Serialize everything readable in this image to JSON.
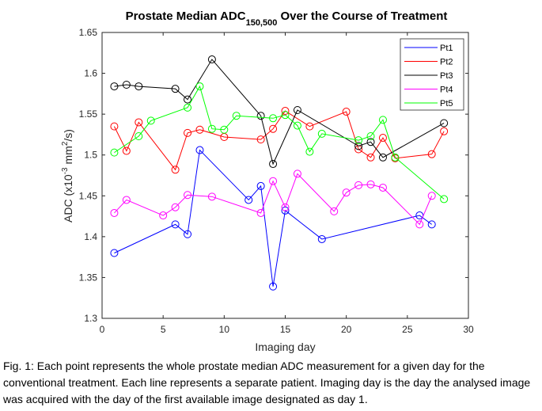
{
  "chart_data": {
    "type": "line",
    "title": {
      "main": "Prostate Median ADC",
      "subscript": "150,500",
      "suffix": " Over the Course of Treatment"
    },
    "xlabel": "Imaging day",
    "ylabel": {
      "prefix": "ADC (x10",
      "exp1": "-3",
      "middle": " mm",
      "exp2": "2",
      "suffix": "/s)"
    },
    "xlim": [
      0,
      30
    ],
    "ylim": [
      1.3,
      1.65
    ],
    "xticks": [
      "0",
      "5",
      "10",
      "15",
      "20",
      "25",
      "30"
    ],
    "yticks": [
      "1.3",
      "1.35",
      "1.4",
      "1.45",
      "1.5",
      "1.55",
      "1.6",
      "1.65"
    ],
    "grid": false,
    "legend_position": "top-right",
    "marker": "circle",
    "series": [
      {
        "name": "Pt1",
        "color": "#0000ff",
        "x": [
          1,
          6,
          7,
          8,
          12,
          13,
          14,
          15,
          18,
          26,
          27
        ],
        "y": [
          1.38,
          1.415,
          1.403,
          1.506,
          1.445,
          1.462,
          1.339,
          1.432,
          1.397,
          1.426,
          1.415
        ]
      },
      {
        "name": "Pt2",
        "color": "#ff0000",
        "x": [
          1,
          2,
          3,
          6,
          7,
          8,
          10,
          13,
          14,
          15,
          17,
          20,
          21,
          22,
          23,
          24,
          27,
          28
        ],
        "y": [
          1.535,
          1.505,
          1.54,
          1.482,
          1.527,
          1.531,
          1.522,
          1.519,
          1.532,
          1.554,
          1.535,
          1.553,
          1.507,
          1.497,
          1.521,
          1.496,
          1.501,
          1.529
        ]
      },
      {
        "name": "Pt3",
        "color": "#000000",
        "x": [
          1,
          2,
          3,
          6,
          7,
          9,
          13,
          14,
          16,
          21,
          22,
          23,
          28
        ],
        "y": [
          1.584,
          1.586,
          1.584,
          1.581,
          1.568,
          1.617,
          1.548,
          1.489,
          1.555,
          1.511,
          1.516,
          1.497,
          1.539
        ]
      },
      {
        "name": "Pt4",
        "color": "#ff00ff",
        "x": [
          1,
          2,
          5,
          6,
          7,
          9,
          13,
          14,
          15,
          16,
          19,
          20,
          21,
          22,
          23,
          26,
          27
        ],
        "y": [
          1.429,
          1.445,
          1.426,
          1.436,
          1.451,
          1.449,
          1.429,
          1.468,
          1.436,
          1.477,
          1.431,
          1.454,
          1.463,
          1.464,
          1.46,
          1.415,
          1.45
        ]
      },
      {
        "name": "Pt5",
        "color": "#00ff00",
        "x": [
          1,
          3,
          4,
          7,
          8,
          9,
          10,
          11,
          14,
          15,
          16,
          17,
          18,
          21,
          22,
          23,
          24,
          28
        ],
        "y": [
          1.503,
          1.523,
          1.542,
          1.558,
          1.584,
          1.532,
          1.531,
          1.548,
          1.545,
          1.549,
          1.536,
          1.504,
          1.526,
          1.518,
          1.523,
          1.543,
          1.497,
          1.446
        ]
      }
    ]
  },
  "caption": "Fig. 1: Each point represents the whole prostate median ADC measurement for a given day for the conventional treatment. Each line represents a separate patient. Imaging day is the day the analysed image was acquired with the day of the first available image designated as day 1."
}
